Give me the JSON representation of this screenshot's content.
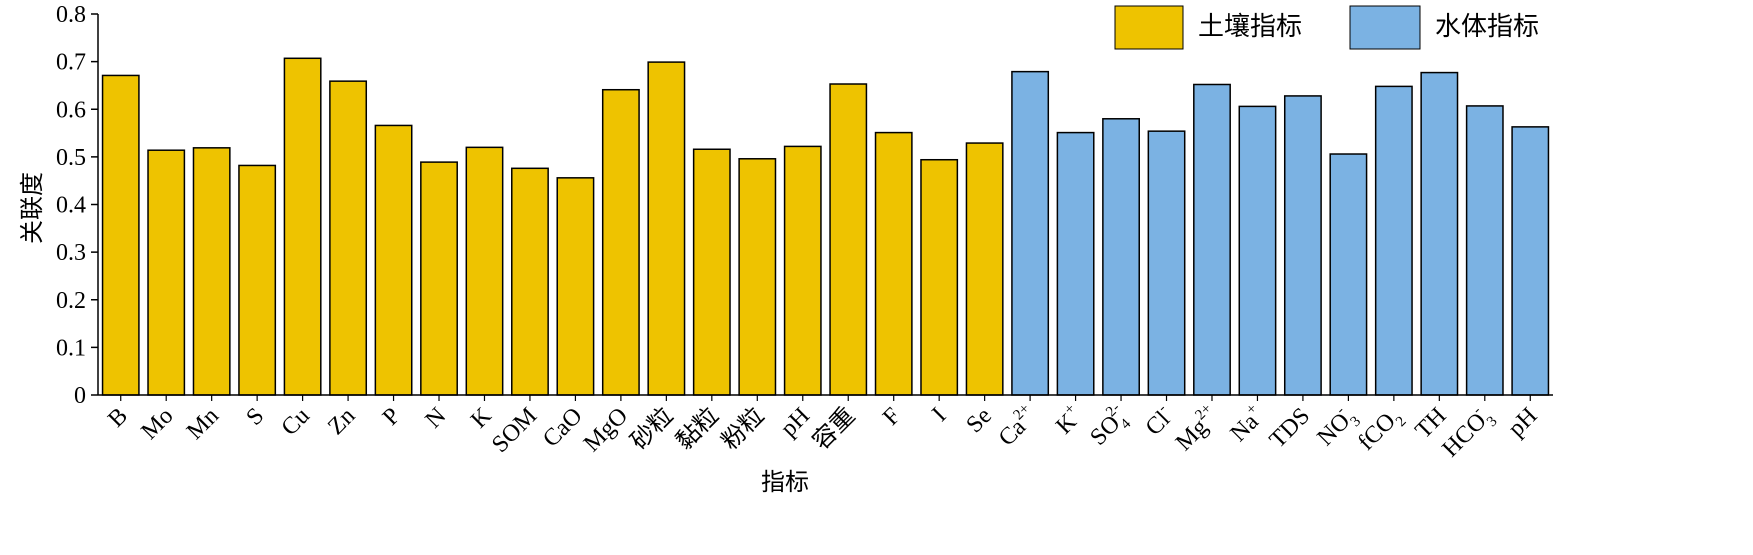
{
  "chart_data": {
    "type": "bar",
    "ylabel": "关联度",
    "xlabel": "指标",
    "ylim": [
      0,
      0.8
    ],
    "yticks": [
      "0",
      "0.1",
      "0.2",
      "0.3",
      "0.4",
      "0.5",
      "0.6",
      "0.7",
      "0.8"
    ],
    "grid": false,
    "legend_position": "top-right",
    "series": [
      {
        "name": "土壤指标",
        "color": "#EEC300",
        "categories": [
          "B",
          "Mo",
          "Mn",
          "S",
          "Cu",
          "Zn",
          "P",
          "N",
          "K",
          "SOM",
          "CaO",
          "MgO",
          "砂粒",
          "黏粒",
          "粉粒",
          "pH",
          "容重",
          "F",
          "I",
          "Se"
        ],
        "values": [
          0.671,
          0.514,
          0.519,
          0.482,
          0.707,
          0.659,
          0.566,
          0.489,
          0.52,
          0.476,
          0.456,
          0.641,
          0.699,
          0.516,
          0.496,
          0.522,
          0.653,
          0.551,
          0.494,
          0.529
        ]
      },
      {
        "name": "水体指标",
        "color": "#7BB2E3",
        "categories": [
          {
            "base": "Ca",
            "sup": "2+",
            "sub": ""
          },
          {
            "base": "K",
            "sup": "+",
            "sub": ""
          },
          {
            "base": "SO",
            "sup": "2-",
            "sub": "4"
          },
          {
            "base": "Cl",
            "sup": "-",
            "sub": ""
          },
          {
            "base": "Mg",
            "sup": "2+",
            "sub": ""
          },
          {
            "base": "Na",
            "sup": "+",
            "sub": ""
          },
          {
            "base": "TDS",
            "sup": "",
            "sub": ""
          },
          {
            "base": "NO",
            "sup": "-",
            "sub": "3"
          },
          {
            "base": "fCO",
            "sup": "",
            "sub": "2"
          },
          {
            "base": "TH",
            "sup": "",
            "sub": ""
          },
          {
            "base": "HCO",
            "sup": "-",
            "sub": "3"
          },
          {
            "base": "pH",
            "sup": "",
            "sub": ""
          }
        ],
        "values": [
          0.679,
          0.551,
          0.58,
          0.554,
          0.652,
          0.606,
          0.628,
          0.506,
          0.648,
          0.677,
          0.607,
          0.563
        ]
      }
    ]
  }
}
